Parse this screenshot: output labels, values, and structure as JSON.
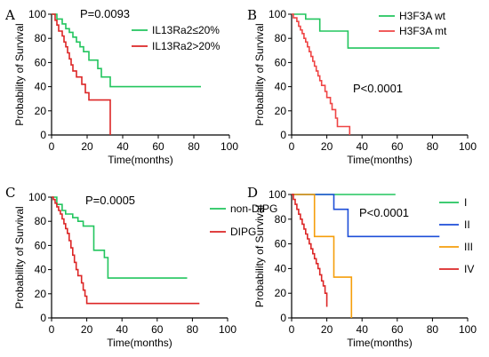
{
  "chart_data": [
    {
      "type": "line",
      "panel": "A",
      "xlabel": "Time(months)",
      "ylabel": "Probability of Survival",
      "xlim": [
        0,
        100
      ],
      "ylim": [
        0,
        100
      ],
      "xticks": [
        0,
        20,
        40,
        60,
        80,
        100
      ],
      "yticks": [
        0,
        20,
        40,
        60,
        80,
        100
      ],
      "annotation": "P=0.0093",
      "legend": "top-right",
      "series": [
        {
          "name": "IL13Ra2≤20%",
          "color": "#22c55e",
          "points": [
            [
              0,
              100
            ],
            [
              3,
              100
            ],
            [
              3,
              96
            ],
            [
              6,
              96
            ],
            [
              6,
              92
            ],
            [
              8,
              92
            ],
            [
              8,
              88
            ],
            [
              10,
              88
            ],
            [
              10,
              85
            ],
            [
              12,
              85
            ],
            [
              12,
              81
            ],
            [
              14,
              81
            ],
            [
              14,
              77
            ],
            [
              16,
              77
            ],
            [
              16,
              73
            ],
            [
              18,
              73
            ],
            [
              18,
              69
            ],
            [
              21,
              69
            ],
            [
              21,
              62
            ],
            [
              26,
              62
            ],
            [
              26,
              55
            ],
            [
              28,
              55
            ],
            [
              28,
              48
            ],
            [
              33,
              48
            ],
            [
              33,
              40
            ],
            [
              84,
              40
            ]
          ]
        },
        {
          "name": "IL13Ra2>20%",
          "color": "#dc2626",
          "points": [
            [
              0,
              100
            ],
            [
              2,
              100
            ],
            [
              2,
              95
            ],
            [
              3,
              95
            ],
            [
              3,
              91
            ],
            [
              4,
              91
            ],
            [
              4,
              86
            ],
            [
              6,
              86
            ],
            [
              6,
              82
            ],
            [
              7,
              82
            ],
            [
              7,
              77
            ],
            [
              8,
              77
            ],
            [
              8,
              73
            ],
            [
              9,
              73
            ],
            [
              9,
              68
            ],
            [
              10,
              68
            ],
            [
              10,
              63
            ],
            [
              11,
              63
            ],
            [
              11,
              58
            ],
            [
              12,
              58
            ],
            [
              12,
              53
            ],
            [
              14,
              53
            ],
            [
              14,
              48
            ],
            [
              17,
              48
            ],
            [
              17,
              42
            ],
            [
              19,
              42
            ],
            [
              19,
              35
            ],
            [
              21,
              35
            ],
            [
              21,
              29
            ],
            [
              33,
              29
            ],
            [
              33,
              0
            ]
          ]
        }
      ]
    },
    {
      "type": "line",
      "panel": "B",
      "xlabel": "Time(months)",
      "ylabel": "Probability of Survival",
      "xlim": [
        0,
        100
      ],
      "ylim": [
        0,
        100
      ],
      "xticks": [
        0,
        20,
        40,
        60,
        80,
        100
      ],
      "yticks": [
        0,
        20,
        40,
        60,
        80,
        100
      ],
      "annotation": "P<0.0001",
      "legend": "top-right",
      "series": [
        {
          "name": "H3F3A wt",
          "color": "#22c55e",
          "points": [
            [
              0,
              100
            ],
            [
              8,
              100
            ],
            [
              8,
              96
            ],
            [
              16,
              96
            ],
            [
              16,
              86
            ],
            [
              32,
              86
            ],
            [
              32,
              72
            ],
            [
              84,
              72
            ]
          ]
        },
        {
          "name": "H3F3A mt",
          "color": "#ef4444",
          "points": [
            [
              0,
              100
            ],
            [
              1,
              100
            ],
            [
              1,
              97
            ],
            [
              3,
              97
            ],
            [
              3,
              94
            ],
            [
              4,
              94
            ],
            [
              4,
              90
            ],
            [
              5,
              90
            ],
            [
              5,
              87
            ],
            [
              6,
              87
            ],
            [
              6,
              84
            ],
            [
              7,
              84
            ],
            [
              7,
              80
            ],
            [
              8,
              80
            ],
            [
              8,
              77
            ],
            [
              9,
              77
            ],
            [
              9,
              73
            ],
            [
              10,
              73
            ],
            [
              10,
              69
            ],
            [
              11,
              69
            ],
            [
              11,
              65
            ],
            [
              12,
              65
            ],
            [
              12,
              61
            ],
            [
              13,
              61
            ],
            [
              13,
              57
            ],
            [
              14,
              57
            ],
            [
              14,
              53
            ],
            [
              15,
              53
            ],
            [
              15,
              49
            ],
            [
              16,
              49
            ],
            [
              16,
              45
            ],
            [
              17,
              45
            ],
            [
              17,
              41
            ],
            [
              19,
              41
            ],
            [
              19,
              36
            ],
            [
              20,
              36
            ],
            [
              20,
              31
            ],
            [
              22,
              31
            ],
            [
              22,
              26
            ],
            [
              23,
              26
            ],
            [
              23,
              21
            ],
            [
              25,
              21
            ],
            [
              25,
              14
            ],
            [
              26,
              14
            ],
            [
              26,
              7
            ],
            [
              33,
              7
            ],
            [
              33,
              0
            ]
          ]
        }
      ]
    },
    {
      "type": "line",
      "panel": "C",
      "xlabel": "Time(months)",
      "ylabel": "Probability of Survival",
      "xlim": [
        0,
        100
      ],
      "ylim": [
        0,
        100
      ],
      "xticks": [
        0,
        20,
        40,
        60,
        80,
        100
      ],
      "yticks": [
        0,
        20,
        40,
        60,
        80,
        100
      ],
      "annotation": "P=0.0005",
      "legend": "top-right",
      "series": [
        {
          "name": "non-DIPG",
          "color": "#22c55e",
          "points": [
            [
              0,
              100
            ],
            [
              3,
              100
            ],
            [
              3,
              94
            ],
            [
              6,
              94
            ],
            [
              6,
              89
            ],
            [
              8,
              89
            ],
            [
              8,
              86
            ],
            [
              12,
              86
            ],
            [
              12,
              83
            ],
            [
              15,
              83
            ],
            [
              15,
              80
            ],
            [
              18,
              80
            ],
            [
              18,
              76
            ],
            [
              24,
              76
            ],
            [
              24,
              56
            ],
            [
              30,
              56
            ],
            [
              30,
              50
            ],
            [
              32,
              50
            ],
            [
              32,
              33
            ],
            [
              77,
              33
            ]
          ]
        },
        {
          "name": "DIPG",
          "color": "#dc2626",
          "points": [
            [
              0,
              100
            ],
            [
              1,
              100
            ],
            [
              1,
              98
            ],
            [
              2,
              98
            ],
            [
              2,
              95
            ],
            [
              3,
              95
            ],
            [
              3,
              92
            ],
            [
              4,
              92
            ],
            [
              4,
              89
            ],
            [
              5,
              89
            ],
            [
              5,
              86
            ],
            [
              6,
              86
            ],
            [
              6,
              82
            ],
            [
              7,
              82
            ],
            [
              7,
              78
            ],
            [
              8,
              78
            ],
            [
              8,
              74
            ],
            [
              9,
              74
            ],
            [
              9,
              70
            ],
            [
              10,
              70
            ],
            [
              10,
              64
            ],
            [
              11,
              64
            ],
            [
              11,
              58
            ],
            [
              12,
              58
            ],
            [
              12,
              52
            ],
            [
              13,
              52
            ],
            [
              13,
              46
            ],
            [
              14,
              46
            ],
            [
              14,
              40
            ],
            [
              15,
              40
            ],
            [
              15,
              35
            ],
            [
              17,
              35
            ],
            [
              17,
              29
            ],
            [
              18,
              29
            ],
            [
              18,
              23
            ],
            [
              19,
              23
            ],
            [
              19,
              18
            ],
            [
              20,
              18
            ],
            [
              20,
              12
            ],
            [
              84,
              12
            ]
          ]
        }
      ]
    },
    {
      "type": "line",
      "panel": "D",
      "xlabel": "Time(months)",
      "ylabel": "Probability of Survival",
      "xlim": [
        0,
        100
      ],
      "ylim": [
        0,
        100
      ],
      "xticks": [
        0,
        20,
        40,
        60,
        80,
        100
      ],
      "yticks": [
        0,
        20,
        40,
        60,
        80,
        100
      ],
      "annotation": "P<0.0001",
      "legend": "right",
      "series": [
        {
          "name": "I",
          "color": "#22c55e",
          "points": [
            [
              0,
              100
            ],
            [
              59,
              100
            ]
          ]
        },
        {
          "name": "II",
          "color": "#1d4ed8",
          "points": [
            [
              0,
              100
            ],
            [
              24,
              100
            ],
            [
              24,
              88
            ],
            [
              32,
              88
            ],
            [
              32,
              66
            ],
            [
              84,
              66
            ]
          ]
        },
        {
          "name": "III",
          "color": "#f59e0b",
          "points": [
            [
              0,
              100
            ],
            [
              13,
              100
            ],
            [
              13,
              66
            ],
            [
              24,
              66
            ],
            [
              24,
              33
            ],
            [
              34,
              33
            ],
            [
              34,
              0
            ]
          ]
        },
        {
          "name": "IV",
          "color": "#dc2626",
          "points": [
            [
              0,
              100
            ],
            [
              1,
              100
            ],
            [
              1,
              96
            ],
            [
              2,
              96
            ],
            [
              2,
              92
            ],
            [
              3,
              92
            ],
            [
              3,
              88
            ],
            [
              4,
              88
            ],
            [
              4,
              84
            ],
            [
              5,
              84
            ],
            [
              5,
              80
            ],
            [
              6,
              80
            ],
            [
              6,
              76
            ],
            [
              7,
              76
            ],
            [
              7,
              72
            ],
            [
              8,
              72
            ],
            [
              8,
              68
            ],
            [
              9,
              68
            ],
            [
              9,
              64
            ],
            [
              10,
              64
            ],
            [
              10,
              60
            ],
            [
              11,
              60
            ],
            [
              11,
              56
            ],
            [
              12,
              56
            ],
            [
              12,
              52
            ],
            [
              13,
              52
            ],
            [
              13,
              48
            ],
            [
              14,
              48
            ],
            [
              14,
              44
            ],
            [
              15,
              44
            ],
            [
              15,
              40
            ],
            [
              16,
              40
            ],
            [
              16,
              35
            ],
            [
              17,
              35
            ],
            [
              17,
              30
            ],
            [
              18,
              30
            ],
            [
              18,
              26
            ],
            [
              19,
              26
            ],
            [
              19,
              20
            ],
            [
              20,
              20
            ],
            [
              20,
              9
            ]
          ]
        }
      ]
    }
  ]
}
